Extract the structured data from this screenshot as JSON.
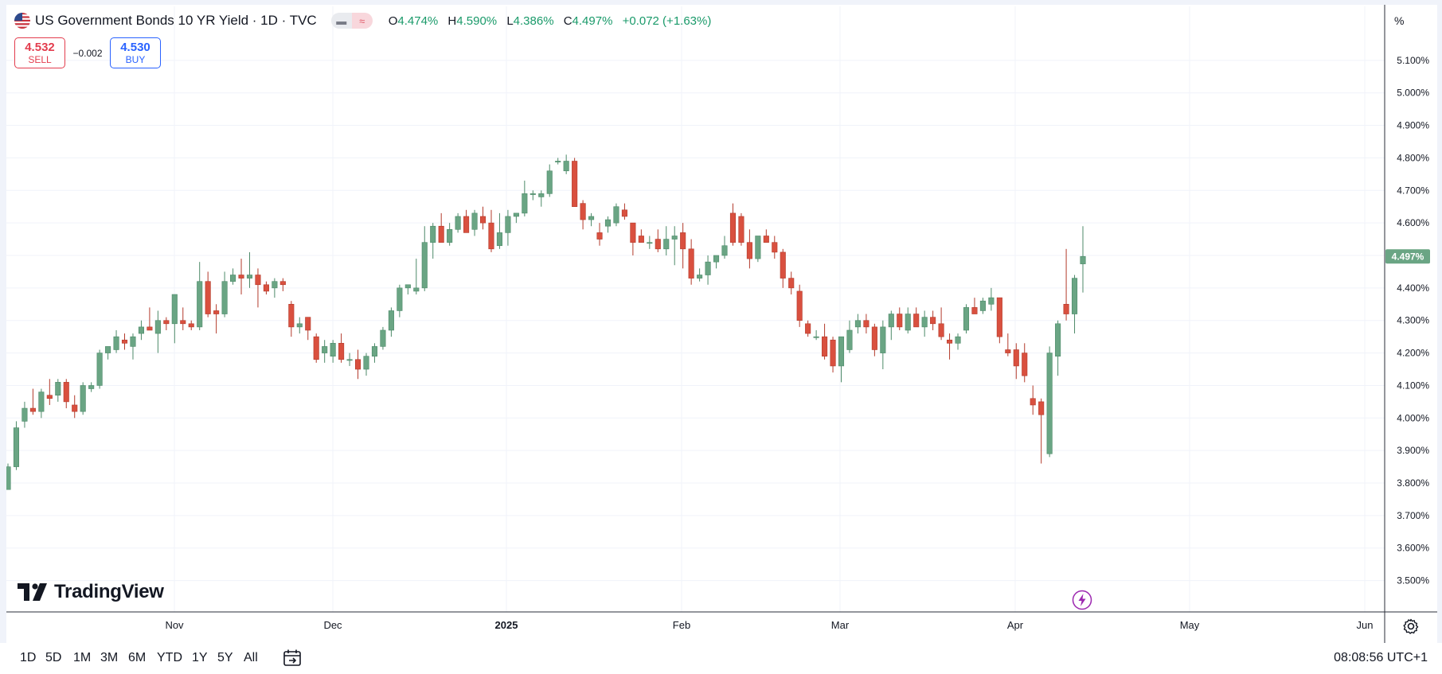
{
  "legend": {
    "title": "US Government Bonds 10 YR Yield · 1D · TVC",
    "open_label": "O",
    "open": "4.474%",
    "high_label": "H",
    "high": "4.590%",
    "low_label": "L",
    "low": "4.386%",
    "close_label": "C",
    "close": "4.497%",
    "change": "+0.072 (+1.63%)",
    "flag_icon": "us-flag-icon"
  },
  "trade": {
    "sell_price": "4.532",
    "sell_label": "SELL",
    "spread": "−0.002",
    "buy_price": "4.530",
    "buy_label": "BUY"
  },
  "price_axis_unit": "%",
  "logo": {
    "text": "TradingView"
  },
  "toolbar": {
    "timeframes": [
      "1D",
      "5D",
      "1M",
      "3M",
      "6M",
      "YTD",
      "1Y",
      "5Y",
      "All"
    ],
    "clock": "08:08:56 UTC+1"
  },
  "colors": {
    "up": "#6aa584",
    "down": "#d9503f",
    "up_wick": "#4d8a69",
    "down_wick": "#b33a2b",
    "last_price_bg": "#6aa584"
  },
  "chart_data": {
    "type": "candlestick",
    "title": "US Government Bonds 10 YR Yield · 1D · TVC",
    "ylabel": "%",
    "ylim": [
      3.42,
      5.15
    ],
    "y_ticks": [
      "5.100%",
      "5.000%",
      "4.900%",
      "4.800%",
      "4.700%",
      "4.600%",
      "4.500%",
      "4.400%",
      "4.300%",
      "4.200%",
      "4.100%",
      "4.000%",
      "3.900%",
      "3.800%",
      "3.700%",
      "3.600%",
      "3.500%"
    ],
    "x_ticks": [
      "Nov",
      "Dec",
      "2025",
      "Feb",
      "Mar",
      "Apr",
      "May",
      "Jun"
    ],
    "last_price": "4.497%",
    "grid": true,
    "candles": [
      {
        "o": 3.78,
        "h": 3.86,
        "l": 3.78,
        "c": 3.85
      },
      {
        "o": 3.85,
        "h": 3.99,
        "l": 3.84,
        "c": 3.97
      },
      {
        "o": 3.99,
        "h": 4.05,
        "l": 3.97,
        "c": 4.03
      },
      {
        "o": 4.03,
        "h": 4.09,
        "l": 4.01,
        "c": 4.02
      },
      {
        "o": 4.02,
        "h": 4.09,
        "l": 4.0,
        "c": 4.08
      },
      {
        "o": 4.07,
        "h": 4.12,
        "l": 4.04,
        "c": 4.06
      },
      {
        "o": 4.07,
        "h": 4.12,
        "l": 4.05,
        "c": 4.11
      },
      {
        "o": 4.11,
        "h": 4.12,
        "l": 4.03,
        "c": 4.05
      },
      {
        "o": 4.04,
        "h": 4.07,
        "l": 4.0,
        "c": 4.02
      },
      {
        "o": 4.02,
        "h": 4.11,
        "l": 4.01,
        "c": 4.1
      },
      {
        "o": 4.09,
        "h": 4.11,
        "l": 4.08,
        "c": 4.1
      },
      {
        "o": 4.1,
        "h": 4.21,
        "l": 4.09,
        "c": 4.2
      },
      {
        "o": 4.2,
        "h": 4.22,
        "l": 4.18,
        "c": 4.22
      },
      {
        "o": 4.21,
        "h": 4.27,
        "l": 4.2,
        "c": 4.25
      },
      {
        "o": 4.24,
        "h": 4.26,
        "l": 4.21,
        "c": 4.23
      },
      {
        "o": 4.22,
        "h": 4.26,
        "l": 4.18,
        "c": 4.25
      },
      {
        "o": 4.26,
        "h": 4.3,
        "l": 4.24,
        "c": 4.28
      },
      {
        "o": 4.28,
        "h": 4.34,
        "l": 4.27,
        "c": 4.27
      },
      {
        "o": 4.26,
        "h": 4.33,
        "l": 4.2,
        "c": 4.3
      },
      {
        "o": 4.3,
        "h": 4.31,
        "l": 4.27,
        "c": 4.29
      },
      {
        "o": 4.29,
        "h": 4.38,
        "l": 4.23,
        "c": 4.38
      },
      {
        "o": 4.3,
        "h": 4.34,
        "l": 4.27,
        "c": 4.29
      },
      {
        "o": 4.29,
        "h": 4.3,
        "l": 4.27,
        "c": 4.28
      },
      {
        "o": 4.28,
        "h": 4.48,
        "l": 4.27,
        "c": 4.42
      },
      {
        "o": 4.42,
        "h": 4.45,
        "l": 4.31,
        "c": 4.32
      },
      {
        "o": 4.33,
        "h": 4.35,
        "l": 4.26,
        "c": 4.32
      },
      {
        "o": 4.32,
        "h": 4.45,
        "l": 4.31,
        "c": 4.42
      },
      {
        "o": 4.42,
        "h": 4.46,
        "l": 4.41,
        "c": 4.44
      },
      {
        "o": 4.44,
        "h": 4.49,
        "l": 4.38,
        "c": 4.43
      },
      {
        "o": 4.43,
        "h": 4.51,
        "l": 4.4,
        "c": 4.44
      },
      {
        "o": 4.44,
        "h": 4.46,
        "l": 4.34,
        "c": 4.41
      },
      {
        "o": 4.41,
        "h": 4.42,
        "l": 4.38,
        "c": 4.39
      },
      {
        "o": 4.4,
        "h": 4.43,
        "l": 4.37,
        "c": 4.42
      },
      {
        "o": 4.42,
        "h": 4.43,
        "l": 4.39,
        "c": 4.41
      },
      {
        "o": 4.35,
        "h": 4.36,
        "l": 4.25,
        "c": 4.28
      },
      {
        "o": 4.28,
        "h": 4.31,
        "l": 4.26,
        "c": 4.29
      },
      {
        "o": 4.31,
        "h": 4.31,
        "l": 4.24,
        "c": 4.27
      },
      {
        "o": 4.25,
        "h": 4.26,
        "l": 4.17,
        "c": 4.18
      },
      {
        "o": 4.2,
        "h": 4.24,
        "l": 4.17,
        "c": 4.22
      },
      {
        "o": 4.19,
        "h": 4.24,
        "l": 4.17,
        "c": 4.23
      },
      {
        "o": 4.23,
        "h": 4.26,
        "l": 4.17,
        "c": 4.18
      },
      {
        "o": 4.18,
        "h": 4.2,
        "l": 4.16,
        "c": 4.18
      },
      {
        "o": 4.18,
        "h": 4.21,
        "l": 4.12,
        "c": 4.15
      },
      {
        "o": 4.15,
        "h": 4.2,
        "l": 4.13,
        "c": 4.19
      },
      {
        "o": 4.19,
        "h": 4.23,
        "l": 4.17,
        "c": 4.22
      },
      {
        "o": 4.22,
        "h": 4.28,
        "l": 4.21,
        "c": 4.27
      },
      {
        "o": 4.27,
        "h": 4.34,
        "l": 4.25,
        "c": 4.33
      },
      {
        "o": 4.33,
        "h": 4.41,
        "l": 4.31,
        "c": 4.4
      },
      {
        "o": 4.4,
        "h": 4.41,
        "l": 4.38,
        "c": 4.41
      },
      {
        "o": 4.39,
        "h": 4.49,
        "l": 4.38,
        "c": 4.4
      },
      {
        "o": 4.4,
        "h": 4.59,
        "l": 4.39,
        "c": 4.54
      },
      {
        "o": 4.54,
        "h": 4.6,
        "l": 4.49,
        "c": 4.59
      },
      {
        "o": 4.59,
        "h": 4.63,
        "l": 4.54,
        "c": 4.54
      },
      {
        "o": 4.54,
        "h": 4.6,
        "l": 4.53,
        "c": 4.58
      },
      {
        "o": 4.58,
        "h": 4.63,
        "l": 4.57,
        "c": 4.62
      },
      {
        "o": 4.62,
        "h": 4.64,
        "l": 4.57,
        "c": 4.57
      },
      {
        "o": 4.58,
        "h": 4.64,
        "l": 4.56,
        "c": 4.63
      },
      {
        "o": 4.62,
        "h": 4.65,
        "l": 4.58,
        "c": 4.6
      },
      {
        "o": 4.6,
        "h": 4.64,
        "l": 4.51,
        "c": 4.52
      },
      {
        "o": 4.53,
        "h": 4.63,
        "l": 4.52,
        "c": 4.57
      },
      {
        "o": 4.57,
        "h": 4.64,
        "l": 4.53,
        "c": 4.62
      },
      {
        "o": 4.62,
        "h": 4.63,
        "l": 4.6,
        "c": 4.63
      },
      {
        "o": 4.63,
        "h": 4.73,
        "l": 4.62,
        "c": 4.69
      },
      {
        "o": 4.69,
        "h": 4.7,
        "l": 4.67,
        "c": 4.69
      },
      {
        "o": 4.68,
        "h": 4.7,
        "l": 4.65,
        "c": 4.69
      },
      {
        "o": 4.69,
        "h": 4.78,
        "l": 4.68,
        "c": 4.76
      },
      {
        "o": 4.79,
        "h": 4.8,
        "l": 4.78,
        "c": 4.79
      },
      {
        "o": 4.76,
        "h": 4.81,
        "l": 4.75,
        "c": 4.79
      },
      {
        "o": 4.79,
        "h": 4.8,
        "l": 4.65,
        "c": 4.65
      },
      {
        "o": 4.66,
        "h": 4.67,
        "l": 4.58,
        "c": 4.61
      },
      {
        "o": 4.61,
        "h": 4.63,
        "l": 4.59,
        "c": 4.62
      },
      {
        "o": 4.57,
        "h": 4.6,
        "l": 4.53,
        "c": 4.55
      },
      {
        "o": 4.59,
        "h": 4.62,
        "l": 4.57,
        "c": 4.61
      },
      {
        "o": 4.6,
        "h": 4.66,
        "l": 4.59,
        "c": 4.65
      },
      {
        "o": 4.64,
        "h": 4.66,
        "l": 4.61,
        "c": 4.62
      },
      {
        "o": 4.6,
        "h": 4.6,
        "l": 4.5,
        "c": 4.54
      },
      {
        "o": 4.56,
        "h": 4.58,
        "l": 4.54,
        "c": 4.54
      },
      {
        "o": 4.54,
        "h": 4.56,
        "l": 4.52,
        "c": 4.54
      },
      {
        "o": 4.55,
        "h": 4.58,
        "l": 4.51,
        "c": 4.52
      },
      {
        "o": 4.52,
        "h": 4.59,
        "l": 4.5,
        "c": 4.55
      },
      {
        "o": 4.55,
        "h": 4.59,
        "l": 4.47,
        "c": 4.56
      },
      {
        "o": 4.57,
        "h": 4.6,
        "l": 4.46,
        "c": 4.52
      },
      {
        "o": 4.52,
        "h": 4.55,
        "l": 4.41,
        "c": 4.43
      },
      {
        "o": 4.43,
        "h": 4.46,
        "l": 4.42,
        "c": 4.44
      },
      {
        "o": 4.44,
        "h": 4.5,
        "l": 4.41,
        "c": 4.48
      },
      {
        "o": 4.48,
        "h": 4.5,
        "l": 4.46,
        "c": 4.5
      },
      {
        "o": 4.5,
        "h": 4.56,
        "l": 4.49,
        "c": 4.53
      },
      {
        "o": 4.63,
        "h": 4.66,
        "l": 4.53,
        "c": 4.54
      },
      {
        "o": 4.62,
        "h": 4.63,
        "l": 4.53,
        "c": 4.54
      },
      {
        "o": 4.54,
        "h": 4.58,
        "l": 4.46,
        "c": 4.49
      },
      {
        "o": 4.49,
        "h": 4.56,
        "l": 4.48,
        "c": 4.56
      },
      {
        "o": 4.56,
        "h": 4.58,
        "l": 4.54,
        "c": 4.54
      },
      {
        "o": 4.54,
        "h": 4.56,
        "l": 4.49,
        "c": 4.51
      },
      {
        "o": 4.51,
        "h": 4.52,
        "l": 4.4,
        "c": 4.43
      },
      {
        "o": 4.43,
        "h": 4.45,
        "l": 4.38,
        "c": 4.4
      },
      {
        "o": 4.39,
        "h": 4.41,
        "l": 4.28,
        "c": 4.3
      },
      {
        "o": 4.29,
        "h": 4.3,
        "l": 4.25,
        "c": 4.26
      },
      {
        "o": 4.25,
        "h": 4.27,
        "l": 4.24,
        "c": 4.25
      },
      {
        "o": 4.25,
        "h": 4.29,
        "l": 4.18,
        "c": 4.19
      },
      {
        "o": 4.24,
        "h": 4.25,
        "l": 4.14,
        "c": 4.16
      },
      {
        "o": 4.16,
        "h": 4.25,
        "l": 4.11,
        "c": 4.25
      },
      {
        "o": 4.21,
        "h": 4.3,
        "l": 4.2,
        "c": 4.27
      },
      {
        "o": 4.28,
        "h": 4.32,
        "l": 4.26,
        "c": 4.3
      },
      {
        "o": 4.3,
        "h": 4.32,
        "l": 4.26,
        "c": 4.28
      },
      {
        "o": 4.28,
        "h": 4.29,
        "l": 4.19,
        "c": 4.21
      },
      {
        "o": 4.2,
        "h": 4.3,
        "l": 4.15,
        "c": 4.28
      },
      {
        "o": 4.28,
        "h": 4.33,
        "l": 4.24,
        "c": 4.32
      },
      {
        "o": 4.32,
        "h": 4.34,
        "l": 4.27,
        "c": 4.28
      },
      {
        "o": 4.27,
        "h": 4.34,
        "l": 4.26,
        "c": 4.32
      },
      {
        "o": 4.32,
        "h": 4.34,
        "l": 4.28,
        "c": 4.28
      },
      {
        "o": 4.28,
        "h": 4.33,
        "l": 4.25,
        "c": 4.31
      },
      {
        "o": 4.31,
        "h": 4.33,
        "l": 4.27,
        "c": 4.29
      },
      {
        "o": 4.29,
        "h": 4.34,
        "l": 4.24,
        "c": 4.25
      },
      {
        "o": 4.24,
        "h": 4.26,
        "l": 4.18,
        "c": 4.23
      },
      {
        "o": 4.23,
        "h": 4.26,
        "l": 4.21,
        "c": 4.25
      },
      {
        "o": 4.27,
        "h": 4.35,
        "l": 4.26,
        "c": 4.34
      },
      {
        "o": 4.34,
        "h": 4.37,
        "l": 4.32,
        "c": 4.32
      },
      {
        "o": 4.33,
        "h": 4.37,
        "l": 4.32,
        "c": 4.36
      },
      {
        "o": 4.35,
        "h": 4.4,
        "l": 4.33,
        "c": 4.37
      },
      {
        "o": 4.37,
        "h": 4.37,
        "l": 4.23,
        "c": 4.25
      },
      {
        "o": 4.21,
        "h": 4.26,
        "l": 4.19,
        "c": 4.2
      },
      {
        "o": 4.21,
        "h": 4.23,
        "l": 4.12,
        "c": 4.16
      },
      {
        "o": 4.2,
        "h": 4.23,
        "l": 4.11,
        "c": 4.13
      },
      {
        "o": 4.06,
        "h": 4.1,
        "l": 4.01,
        "c": 4.04
      },
      {
        "o": 4.05,
        "h": 4.06,
        "l": 3.86,
        "c": 4.01
      },
      {
        "o": 3.89,
        "h": 4.22,
        "l": 3.88,
        "c": 4.2
      },
      {
        "o": 4.19,
        "h": 4.3,
        "l": 4.13,
        "c": 4.29
      },
      {
        "o": 4.35,
        "h": 4.52,
        "l": 4.3,
        "c": 4.32
      },
      {
        "o": 4.32,
        "h": 4.44,
        "l": 4.26,
        "c": 4.43
      },
      {
        "o": 4.474,
        "h": 4.59,
        "l": 4.386,
        "c": 4.497
      }
    ]
  }
}
